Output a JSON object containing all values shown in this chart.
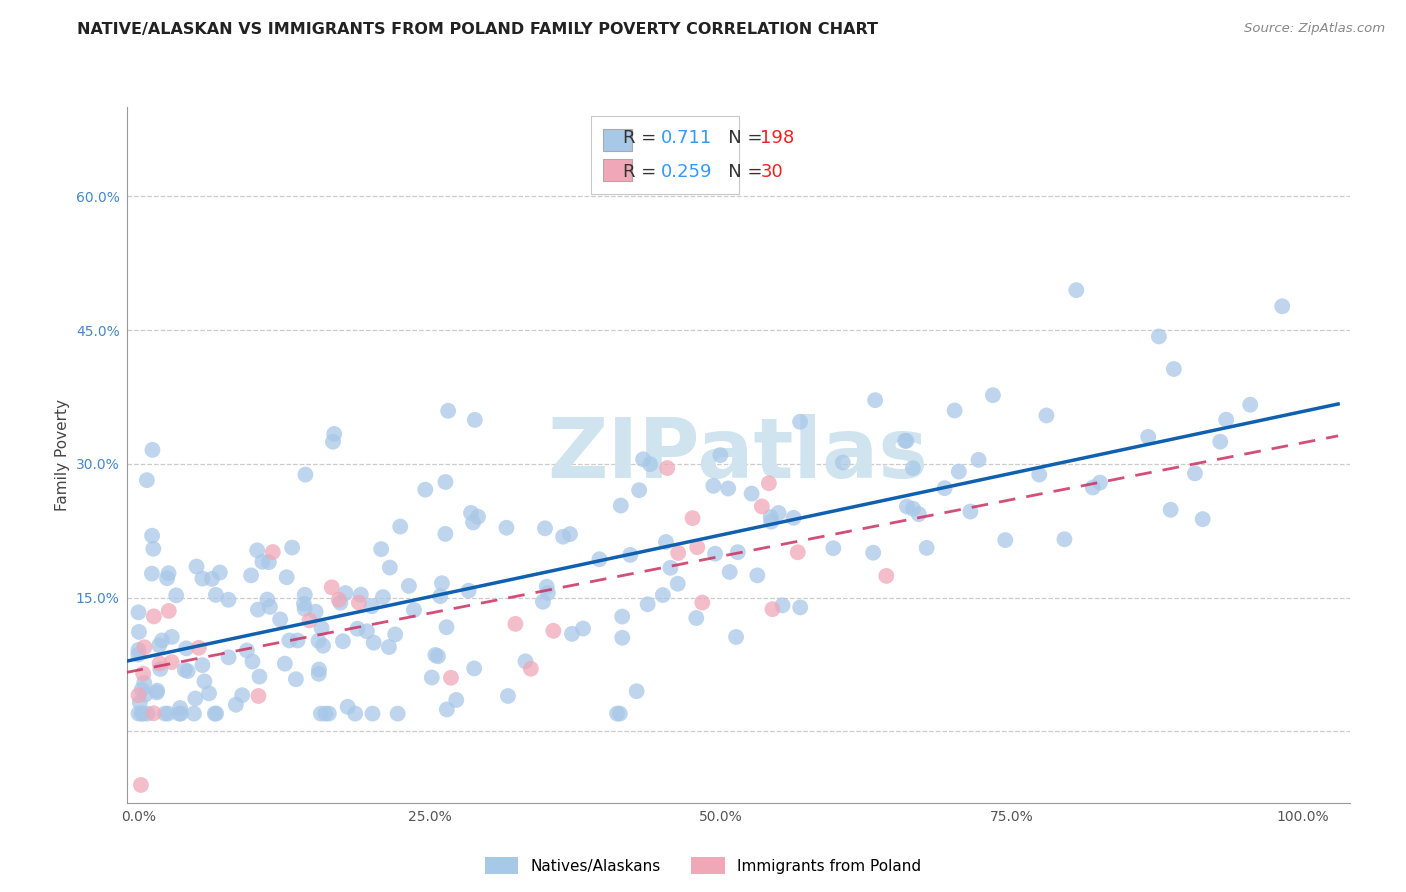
{
  "title": "NATIVE/ALASKAN VS IMMIGRANTS FROM POLAND FAMILY POVERTY CORRELATION CHART",
  "source": "Source: ZipAtlas.com",
  "ylabel": "Family Poverty",
  "xlim": [
    -0.01,
    1.04
  ],
  "ylim": [
    -0.08,
    0.7
  ],
  "yticks": [
    0.0,
    0.15,
    0.3,
    0.45,
    0.6
  ],
  "ytick_labels": [
    "",
    "15.0%",
    "30.0%",
    "45.0%",
    "60.0%"
  ],
  "xticks": [
    0.0,
    0.25,
    0.5,
    0.75,
    1.0
  ],
  "xtick_labels": [
    "0.0%",
    "25.0%",
    "50.0%",
    "75.0%",
    "100.0%"
  ],
  "blue_fill": "#a8c8e8",
  "blue_edge": "#7aafd0",
  "pink_fill": "#f0a8b8",
  "pink_edge": "#d88098",
  "blue_line_color": "#1060b0",
  "pink_line_color": "#cc3060",
  "R_blue": 0.711,
  "N_blue": 198,
  "R_pink": 0.259,
  "N_pink": 30,
  "legend_R_color": "#3399ff",
  "legend_N_color": "#ee2222",
  "legend_text_color": "#333333",
  "watermark": "ZIPatlas",
  "watermark_color": "#d0e4f0",
  "title_fontsize": 11.5,
  "source_fontsize": 9.5,
  "label_fontsize": 11,
  "tick_fontsize": 10,
  "ytick_color": "#4488cc",
  "xtick_color": "#555555",
  "grid_color": "#cccccc",
  "spine_color": "#999999"
}
